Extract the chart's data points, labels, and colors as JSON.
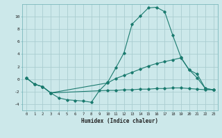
{
  "xlabel": "Humidex (Indice chaleur)",
  "bg_color": "#cce8ea",
  "grid_color": "#aacdd0",
  "line_color": "#1a7a6e",
  "xlim": [
    -0.5,
    23.5
  ],
  "ylim": [
    -5,
    12
  ],
  "yticks": [
    -4,
    -2,
    0,
    2,
    4,
    6,
    8,
    10
  ],
  "xticks": [
    0,
    1,
    2,
    3,
    4,
    5,
    6,
    7,
    8,
    9,
    10,
    11,
    12,
    13,
    14,
    15,
    16,
    17,
    18,
    19,
    20,
    21,
    22,
    23
  ],
  "line1_x": [
    0,
    1,
    2,
    3,
    4,
    5,
    6,
    7,
    8,
    9,
    10,
    11,
    12,
    13,
    14,
    15,
    16,
    17,
    18,
    19,
    20,
    21,
    22,
    23
  ],
  "line1_y": [
    0.2,
    -0.8,
    -1.2,
    -2.2,
    -3.0,
    -3.3,
    -3.4,
    -3.5,
    -3.7,
    -1.8,
    -0.5,
    1.8,
    4.2,
    8.8,
    10.1,
    11.4,
    11.5,
    10.8,
    7.0,
    3.5,
    1.5,
    0.2,
    -1.5,
    -1.7
  ],
  "line2_x": [
    0,
    1,
    2,
    3,
    10,
    11,
    12,
    13,
    14,
    15,
    16,
    17,
    18,
    19,
    20,
    21,
    22,
    23
  ],
  "line2_y": [
    0.2,
    -0.8,
    -1.2,
    -2.2,
    -0.6,
    0.1,
    0.6,
    1.1,
    1.6,
    2.1,
    2.5,
    2.8,
    3.1,
    3.4,
    1.5,
    0.8,
    -1.5,
    -1.7
  ],
  "line3_x": [
    0,
    1,
    2,
    3,
    10,
    11,
    12,
    13,
    14,
    15,
    16,
    17,
    18,
    19,
    20,
    21,
    22,
    23
  ],
  "line3_y": [
    0.2,
    -0.8,
    -1.2,
    -2.2,
    -1.8,
    -1.8,
    -1.7,
    -1.7,
    -1.6,
    -1.6,
    -1.5,
    -1.5,
    -1.4,
    -1.4,
    -1.5,
    -1.6,
    -1.7,
    -1.7
  ]
}
